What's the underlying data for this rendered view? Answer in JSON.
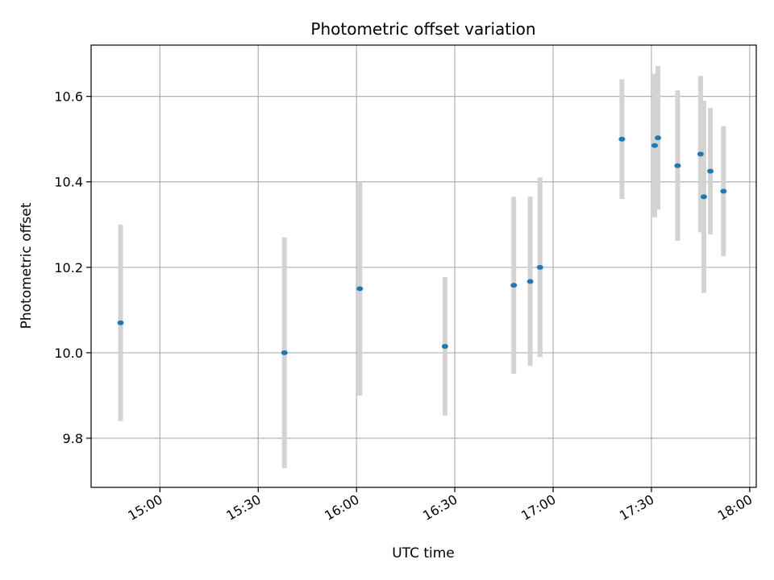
{
  "chart_data": {
    "type": "scatter",
    "title": "Photometric offset variation",
    "xlabel": "UTC time",
    "ylabel": "Photometric offset",
    "x_axis": {
      "kind": "time",
      "range": [
        "14:39",
        "18:02"
      ],
      "ticks": [
        "15:00",
        "15:30",
        "16:00",
        "16:30",
        "17:00",
        "17:30",
        "18:00"
      ],
      "tick_label_rotation_deg": 30
    },
    "y_axis": {
      "range": [
        9.685,
        10.72
      ],
      "ticks": [
        9.8,
        10.0,
        10.2,
        10.4,
        10.6
      ],
      "tick_labels": [
        "9.8",
        "10.0",
        "10.2",
        "10.4",
        "10.6"
      ]
    },
    "grid": true,
    "legend": "none",
    "colors": {
      "point": "#1f77b4",
      "errorbar": "#d3d3d3",
      "grid": "#b0b0b0"
    },
    "series": [
      {
        "points": [
          {
            "x": "14:48",
            "y": 10.07,
            "yerr": 0.23
          },
          {
            "x": "15:38",
            "y": 10.0,
            "yerr": 0.27
          },
          {
            "x": "16:01",
            "y": 10.15,
            "yerr": 0.25
          },
          {
            "x": "16:27",
            "y": 10.015,
            "yerr": 0.162
          },
          {
            "x": "16:48",
            "y": 10.158,
            "yerr": 0.207
          },
          {
            "x": "16:53",
            "y": 10.167,
            "yerr": 0.198
          },
          {
            "x": "16:56",
            "y": 10.2,
            "yerr": 0.21
          },
          {
            "x": "17:21",
            "y": 10.5,
            "yerr": 0.14
          },
          {
            "x": "17:31",
            "y": 10.485,
            "yerr": 0.168
          },
          {
            "x": "17:32",
            "y": 10.503,
            "yerr": 0.168
          },
          {
            "x": "17:38",
            "y": 10.438,
            "yerr": 0.176
          },
          {
            "x": "17:45",
            "y": 10.465,
            "yerr": 0.183
          },
          {
            "x": "17:46",
            "y": 10.365,
            "yerr": 0.225
          },
          {
            "x": "17:48",
            "y": 10.425,
            "yerr": 0.148
          },
          {
            "x": "17:52",
            "y": 10.378,
            "yerr": 0.152
          }
        ]
      }
    ]
  }
}
